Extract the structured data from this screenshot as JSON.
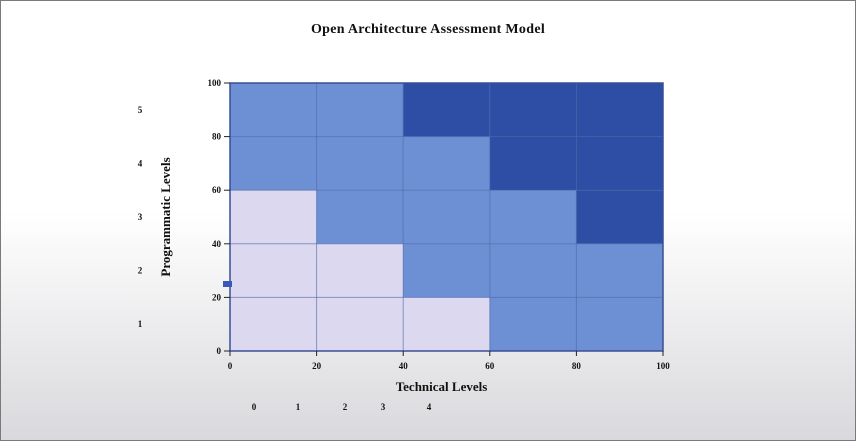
{
  "chart_data": {
    "type": "heatmap",
    "title": "Open Architecture Assessment Model",
    "xlabel": "Technical Levels",
    "ylabel": "Programmatic Levels",
    "x_ticks": [
      "0",
      "20",
      "40",
      "60",
      "80",
      "100"
    ],
    "y_ticks": [
      "0",
      "20",
      "40",
      "60",
      "80",
      "100"
    ],
    "xlim": [
      0,
      100
    ],
    "ylim": [
      0,
      100
    ],
    "y_level_labels": [
      "1",
      "2",
      "3",
      "4",
      "5"
    ],
    "legend_labels": [
      "0",
      "1",
      "2",
      "3",
      "4"
    ],
    "grid": true,
    "levels_by_row_top_to_bottom": [
      [
        2,
        2,
        4,
        4,
        4
      ],
      [
        2,
        2,
        2,
        4,
        4
      ],
      [
        0,
        2,
        2,
        2,
        4
      ],
      [
        0,
        0,
        2,
        2,
        2
      ],
      [
        0,
        0,
        0,
        2,
        2
      ]
    ],
    "level_colors": {
      "0": "#dcd8ef",
      "2": "#6d8fd3",
      "4": "#2d4ea4"
    },
    "marker_color": "#3b58b8"
  }
}
